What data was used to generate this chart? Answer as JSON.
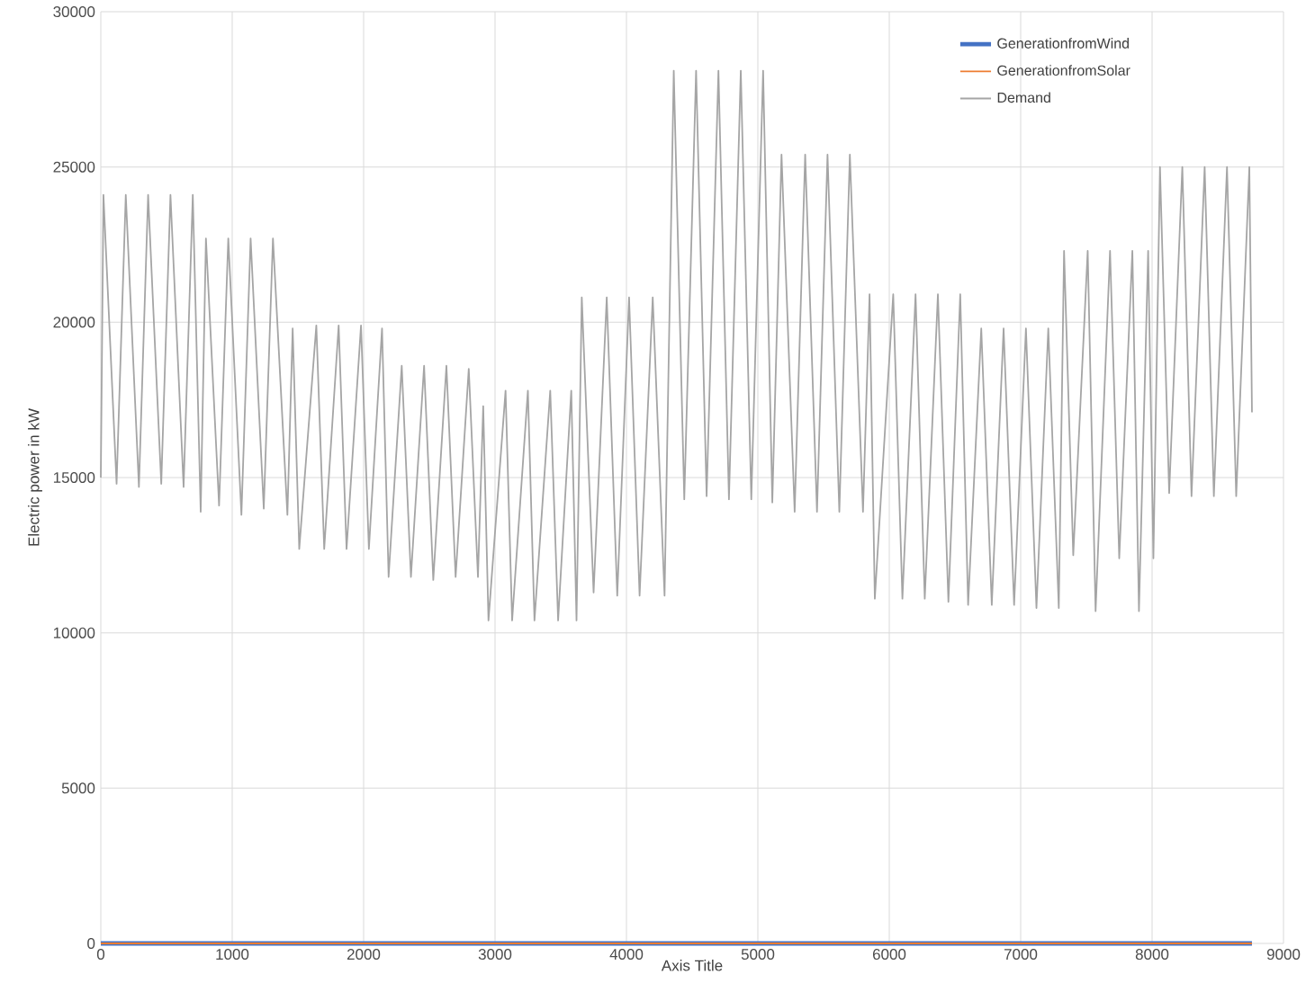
{
  "chart_data": {
    "type": "line",
    "xlabel": "Axis Title",
    "ylabel": "Electric power in kW",
    "xlim": [
      0,
      9000
    ],
    "xticks": [
      0,
      1000,
      2000,
      3000,
      4000,
      5000,
      6000,
      7000,
      8000,
      9000
    ],
    "ylim": [
      0,
      30000
    ],
    "yticks": [
      0,
      5000,
      10000,
      15000,
      20000,
      25000,
      30000
    ],
    "grid": true,
    "legend": "top right",
    "marker": "none",
    "series": [
      {
        "name": "GenerationfromWind",
        "color": "#4472c4",
        "x": [
          0,
          8760
        ],
        "values": [
          0,
          0
        ]
      },
      {
        "name": "GenerationfromSolar",
        "color": "#ed7d31",
        "x": [
          0,
          8760
        ],
        "values": [
          0,
          0
        ]
      },
      {
        "name": "Demand",
        "color": "#a5a5a5",
        "x": [
          0,
          20,
          120,
          190,
          290,
          360,
          460,
          530,
          630,
          700,
          760,
          800,
          900,
          970,
          1070,
          1140,
          1240,
          1310,
          1420,
          1460,
          1510,
          1640,
          1700,
          1810,
          1870,
          1980,
          2040,
          2140,
          2190,
          2290,
          2360,
          2460,
          2530,
          2630,
          2700,
          2800,
          2870,
          2910,
          2950,
          3080,
          3130,
          3250,
          3300,
          3420,
          3480,
          3580,
          3620,
          3660,
          3750,
          3850,
          3930,
          4020,
          4100,
          4200,
          4290,
          4360,
          4440,
          4530,
          4610,
          4700,
          4780,
          4870,
          4950,
          5040,
          5110,
          5180,
          5280,
          5360,
          5450,
          5530,
          5620,
          5700,
          5800,
          5850,
          5890,
          6030,
          6100,
          6200,
          6270,
          6370,
          6450,
          6540,
          6600,
          6700,
          6780,
          6870,
          6950,
          7040,
          7120,
          7210,
          7290,
          7330,
          7400,
          7510,
          7570,
          7680,
          7750,
          7850,
          7900,
          7970,
          8010,
          8060,
          8130,
          8230,
          8300,
          8400,
          8470,
          8570,
          8640,
          8740,
          8760
        ],
        "values": [
          15000,
          24100,
          14800,
          24100,
          14700,
          24100,
          14800,
          24100,
          14700,
          24100,
          13900,
          22700,
          14100,
          22700,
          13800,
          22700,
          14000,
          22700,
          13800,
          19800,
          12700,
          19900,
          12700,
          19900,
          12700,
          19900,
          12700,
          19800,
          11800,
          18600,
          11800,
          18600,
          11700,
          18600,
          11800,
          18500,
          11800,
          17300,
          10400,
          17800,
          10400,
          17800,
          10400,
          17800,
          10400,
          17800,
          10400,
          20800,
          11300,
          20800,
          11200,
          20800,
          11200,
          20800,
          11200,
          28100,
          14300,
          28100,
          14400,
          28100,
          14300,
          28100,
          14300,
          28100,
          14200,
          25400,
          13900,
          25400,
          13900,
          25400,
          13900,
          25400,
          13900,
          20900,
          11100,
          20900,
          11100,
          20900,
          11100,
          20900,
          11000,
          20900,
          10900,
          19800,
          10900,
          19800,
          10900,
          19800,
          10800,
          19800,
          10800,
          22300,
          12500,
          22300,
          10700,
          22300,
          12400,
          22300,
          10700,
          22300,
          12400,
          25000,
          14500,
          25000,
          14400,
          25000,
          14400,
          25000,
          14400,
          25000,
          17100
        ]
      }
    ]
  }
}
